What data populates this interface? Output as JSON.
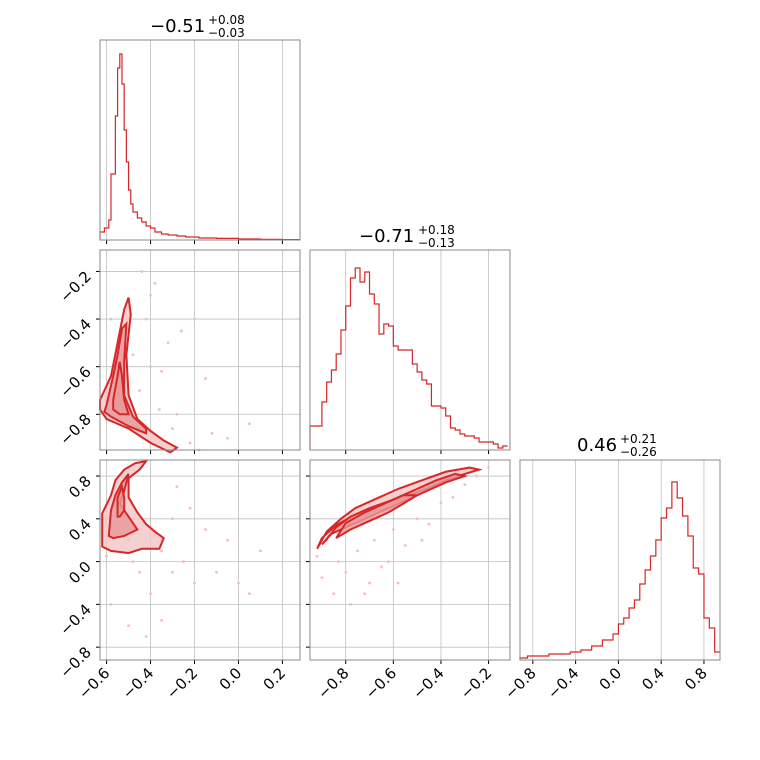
{
  "colors": {
    "line": "#d62728",
    "fill_light": "#f2c4c4",
    "fill_mid": "#e9999a",
    "scatter": "#f4bcbc",
    "grid": "#c0c0c0",
    "frame": "#888888"
  },
  "titles": {
    "p0": {
      "main": "−0.51",
      "sup": "+0.08",
      "sub": "−0.03"
    },
    "p1": {
      "main": "−0.71",
      "sup": "+0.18",
      "sub": "−0.13"
    },
    "p2": {
      "main": "0.46",
      "sup": "+0.21",
      "sub": "−0.26"
    }
  },
  "ticks": {
    "x0": [
      {
        "v": -0.6,
        "label": "−0.6"
      },
      {
        "v": -0.4,
        "label": "−0.4"
      },
      {
        "v": -0.2,
        "label": "−0.2"
      },
      {
        "v": 0.0,
        "label": "0.0"
      },
      {
        "v": 0.2,
        "label": "0.2"
      }
    ],
    "x1": [
      {
        "v": -0.8,
        "label": "−0.8"
      },
      {
        "v": -0.6,
        "label": "−0.6"
      },
      {
        "v": -0.4,
        "label": "−0.4"
      },
      {
        "v": -0.2,
        "label": "−0.2"
      }
    ],
    "x2": [
      {
        "v": -0.8,
        "label": "−0.8"
      },
      {
        "v": -0.4,
        "label": "−0.4"
      },
      {
        "v": 0.0,
        "label": "0.0"
      },
      {
        "v": 0.4,
        "label": "0.4"
      },
      {
        "v": 0.8,
        "label": "0.8"
      }
    ],
    "y1": [
      {
        "v": -0.2,
        "label": "−0.2"
      },
      {
        "v": -0.4,
        "label": "−0.4"
      },
      {
        "v": -0.6,
        "label": "−0.6"
      },
      {
        "v": -0.8,
        "label": "−0.8"
      }
    ],
    "y2": [
      {
        "v": 0.8,
        "label": "0.8"
      },
      {
        "v": 0.4,
        "label": "0.4"
      },
      {
        "v": 0.0,
        "label": "0.0"
      },
      {
        "v": -0.4,
        "label": "−0.4"
      },
      {
        "v": -0.8,
        "label": "−0.8"
      }
    ]
  },
  "chart_data": {
    "type": "corner",
    "grid": true,
    "ranges": {
      "p0": [
        -0.63,
        0.28
      ],
      "p1": [
        -0.95,
        -0.11
      ],
      "p2": [
        -0.92,
        0.95
      ]
    },
    "hist_p0": {
      "x": [
        -0.63,
        -0.61,
        -0.59,
        -0.58,
        -0.56,
        -0.55,
        -0.54,
        -0.53,
        -0.52,
        -0.51,
        -0.5,
        -0.49,
        -0.48,
        -0.46,
        -0.44,
        -0.42,
        -0.4,
        -0.38,
        -0.35,
        -0.32,
        -0.28,
        -0.24,
        -0.18,
        -0.1,
        0.0,
        0.1,
        0.2,
        0.28
      ],
      "y": [
        0.04,
        0.06,
        0.1,
        0.33,
        0.62,
        0.86,
        0.93,
        0.78,
        0.55,
        0.39,
        0.25,
        0.18,
        0.14,
        0.11,
        0.09,
        0.07,
        0.06,
        0.04,
        0.03,
        0.025,
        0.02,
        0.015,
        0.01,
        0.008,
        0.005,
        0.003,
        0.002,
        0.0
      ]
    },
    "hist_p1": {
      "x": [
        -0.95,
        -0.92,
        -0.9,
        -0.88,
        -0.86,
        -0.84,
        -0.82,
        -0.8,
        -0.78,
        -0.76,
        -0.74,
        -0.72,
        -0.7,
        -0.68,
        -0.66,
        -0.64,
        -0.62,
        -0.6,
        -0.58,
        -0.56,
        -0.54,
        -0.52,
        -0.5,
        -0.48,
        -0.46,
        -0.44,
        -0.42,
        -0.4,
        -0.38,
        -0.36,
        -0.34,
        -0.32,
        -0.3,
        -0.28,
        -0.26,
        -0.24,
        -0.22,
        -0.2,
        -0.18,
        -0.16,
        -0.14,
        -0.12
      ],
      "y": [
        0.12,
        0.12,
        0.24,
        0.34,
        0.4,
        0.48,
        0.6,
        0.72,
        0.86,
        0.91,
        0.84,
        0.89,
        0.78,
        0.73,
        0.58,
        0.63,
        0.62,
        0.52,
        0.5,
        0.5,
        0.5,
        0.43,
        0.39,
        0.35,
        0.33,
        0.22,
        0.22,
        0.21,
        0.17,
        0.11,
        0.1,
        0.08,
        0.07,
        0.07,
        0.06,
        0.04,
        0.04,
        0.04,
        0.03,
        0.01,
        0.02,
        0.0
      ]
    },
    "hist_p2": {
      "x": [
        -0.92,
        -0.85,
        -0.75,
        -0.65,
        -0.55,
        -0.45,
        -0.35,
        -0.25,
        -0.15,
        -0.05,
        0.0,
        0.05,
        0.1,
        0.15,
        0.2,
        0.25,
        0.3,
        0.35,
        0.4,
        0.45,
        0.5,
        0.55,
        0.6,
        0.65,
        0.7,
        0.75,
        0.8,
        0.85,
        0.9,
        0.95
      ],
      "y": [
        0.01,
        0.02,
        0.02,
        0.03,
        0.03,
        0.04,
        0.05,
        0.07,
        0.1,
        0.13,
        0.18,
        0.21,
        0.26,
        0.3,
        0.38,
        0.45,
        0.52,
        0.6,
        0.71,
        0.76,
        0.89,
        0.81,
        0.72,
        0.62,
        0.46,
        0.43,
        0.21,
        0.16,
        0.04,
        0.0
      ]
    },
    "scatter_p0_p1": [
      [
        -0.56,
        -0.75
      ],
      [
        -0.52,
        -0.62
      ],
      [
        -0.48,
        -0.55
      ],
      [
        -0.45,
        -0.7
      ],
      [
        -0.42,
        -0.4
      ],
      [
        -0.4,
        -0.3
      ],
      [
        -0.38,
        -0.25
      ],
      [
        -0.35,
        -0.62
      ],
      [
        -0.32,
        -0.5
      ],
      [
        -0.28,
        -0.8
      ],
      [
        -0.26,
        -0.45
      ],
      [
        -0.22,
        -0.92
      ],
      [
        -0.18,
        -0.95
      ],
      [
        -0.12,
        -0.88
      ],
      [
        -0.05,
        -0.9
      ],
      [
        0.05,
        -0.84
      ],
      [
        -0.44,
        -0.2
      ],
      [
        -0.58,
        -0.4
      ],
      [
        -0.5,
        -0.35
      ],
      [
        -0.36,
        -0.78
      ],
      [
        -0.3,
        -0.86
      ],
      [
        -0.15,
        -0.65
      ],
      [
        -0.4,
        -0.6
      ],
      [
        -0.46,
        -0.85
      ],
      [
        -0.2,
        -0.4
      ]
    ],
    "contour_p0_p1": [
      [
        [
          -0.63,
          -0.74
        ],
        [
          -0.58,
          -0.64
        ],
        [
          -0.55,
          -0.5
        ],
        [
          -0.52,
          -0.36
        ],
        [
          -0.5,
          -0.31
        ],
        [
          -0.49,
          -0.38
        ],
        [
          -0.51,
          -0.55
        ],
        [
          -0.5,
          -0.72
        ],
        [
          -0.46,
          -0.82
        ],
        [
          -0.4,
          -0.87
        ],
        [
          -0.34,
          -0.91
        ],
        [
          -0.28,
          -0.94
        ],
        [
          -0.31,
          -0.96
        ],
        [
          -0.4,
          -0.92
        ],
        [
          -0.5,
          -0.86
        ],
        [
          -0.6,
          -0.82
        ],
        [
          -0.63,
          -0.78
        ]
      ],
      [
        [
          -0.6,
          -0.76
        ],
        [
          -0.57,
          -0.64
        ],
        [
          -0.55,
          -0.55
        ],
        [
          -0.53,
          -0.44
        ],
        [
          -0.51,
          -0.42
        ],
        [
          -0.52,
          -0.58
        ],
        [
          -0.52,
          -0.72
        ],
        [
          -0.48,
          -0.81
        ],
        [
          -0.42,
          -0.86
        ],
        [
          -0.42,
          -0.88
        ],
        [
          -0.5,
          -0.85
        ],
        [
          -0.58,
          -0.81
        ],
        [
          -0.61,
          -0.79
        ]
      ],
      [
        [
          -0.57,
          -0.74
        ],
        [
          -0.55,
          -0.64
        ],
        [
          -0.54,
          -0.58
        ],
        [
          -0.53,
          -0.64
        ],
        [
          -0.52,
          -0.74
        ],
        [
          -0.5,
          -0.8
        ],
        [
          -0.54,
          -0.8
        ],
        [
          -0.57,
          -0.78
        ]
      ]
    ],
    "scatter_p0_p2": [
      [
        -0.55,
        0.6
      ],
      [
        -0.5,
        0.2
      ],
      [
        -0.45,
        -0.1
      ],
      [
        -0.4,
        -0.3
      ],
      [
        -0.35,
        0.1
      ],
      [
        -0.3,
        0.4
      ],
      [
        -0.25,
        0.0
      ],
      [
        -0.2,
        -0.2
      ],
      [
        -0.15,
        0.3
      ],
      [
        -0.1,
        -0.1
      ],
      [
        -0.05,
        0.2
      ],
      [
        0.05,
        -0.3
      ],
      [
        0.1,
        0.1
      ],
      [
        -0.58,
        -0.4
      ],
      [
        -0.5,
        -0.6
      ],
      [
        -0.42,
        -0.7
      ],
      [
        -0.35,
        -0.55
      ],
      [
        -0.28,
        0.7
      ],
      [
        -0.6,
        0.05
      ],
      [
        -0.3,
        -0.1
      ],
      [
        -0.22,
        0.5
      ],
      [
        0.0,
        -0.2
      ],
      [
        -0.48,
        0.0
      ],
      [
        -0.38,
        0.25
      ]
    ],
    "contour_p0_p2": [
      [
        [
          -0.62,
          0.18
        ],
        [
          -0.62,
          0.45
        ],
        [
          -0.58,
          0.62
        ],
        [
          -0.56,
          0.76
        ],
        [
          -0.52,
          0.86
        ],
        [
          -0.47,
          0.92
        ],
        [
          -0.42,
          0.94
        ],
        [
          -0.45,
          0.86
        ],
        [
          -0.5,
          0.78
        ],
        [
          -0.5,
          0.6
        ],
        [
          -0.46,
          0.46
        ],
        [
          -0.42,
          0.35
        ],
        [
          -0.38,
          0.28
        ],
        [
          -0.34,
          0.22
        ],
        [
          -0.36,
          0.12
        ],
        [
          -0.44,
          0.12
        ],
        [
          -0.5,
          0.08
        ],
        [
          -0.58,
          0.1
        ],
        [
          -0.62,
          0.14
        ]
      ],
      [
        [
          -0.59,
          0.24
        ],
        [
          -0.58,
          0.48
        ],
        [
          -0.56,
          0.62
        ],
        [
          -0.53,
          0.74
        ],
        [
          -0.5,
          0.82
        ],
        [
          -0.52,
          0.66
        ],
        [
          -0.54,
          0.54
        ],
        [
          -0.5,
          0.42
        ],
        [
          -0.46,
          0.3
        ],
        [
          -0.52,
          0.24
        ],
        [
          -0.57,
          0.22
        ]
      ],
      [
        [
          -0.55,
          0.42
        ],
        [
          -0.55,
          0.6
        ],
        [
          -0.53,
          0.7
        ],
        [
          -0.52,
          0.6
        ],
        [
          -0.52,
          0.48
        ],
        [
          -0.54,
          0.42
        ]
      ]
    ],
    "scatter_p1_p2": [
      [
        -0.92,
        0.05
      ],
      [
        -0.9,
        -0.15
      ],
      [
        -0.85,
        -0.3
      ],
      [
        -0.8,
        -0.1
      ],
      [
        -0.78,
        -0.4
      ],
      [
        -0.75,
        0.1
      ],
      [
        -0.7,
        -0.2
      ],
      [
        -0.68,
        0.2
      ],
      [
        -0.65,
        -0.05
      ],
      [
        -0.6,
        0.3
      ],
      [
        -0.55,
        0.15
      ],
      [
        -0.5,
        0.4
      ],
      [
        -0.45,
        0.35
      ],
      [
        -0.4,
        0.55
      ],
      [
        -0.35,
        0.6
      ],
      [
        -0.3,
        0.72
      ],
      [
        -0.25,
        0.8
      ],
      [
        -0.2,
        0.88
      ],
      [
        -0.88,
        0.2
      ],
      [
        -0.83,
        0.0
      ],
      [
        -0.72,
        -0.3
      ],
      [
        -0.62,
        0.0
      ],
      [
        -0.58,
        -0.2
      ],
      [
        -0.48,
        0.2
      ]
    ],
    "contour_p1_p2": [
      [
        [
          -0.92,
          0.12
        ],
        [
          -0.9,
          0.22
        ],
        [
          -0.84,
          0.34
        ],
        [
          -0.76,
          0.44
        ],
        [
          -0.66,
          0.52
        ],
        [
          -0.56,
          0.6
        ],
        [
          -0.46,
          0.68
        ],
        [
          -0.38,
          0.76
        ],
        [
          -0.3,
          0.82
        ],
        [
          -0.24,
          0.86
        ],
        [
          -0.28,
          0.88
        ],
        [
          -0.38,
          0.84
        ],
        [
          -0.48,
          0.76
        ],
        [
          -0.58,
          0.68
        ],
        [
          -0.68,
          0.58
        ],
        [
          -0.76,
          0.5
        ],
        [
          -0.82,
          0.4
        ],
        [
          -0.88,
          0.28
        ]
      ],
      [
        [
          -0.9,
          0.16
        ],
        [
          -0.86,
          0.26
        ],
        [
          -0.78,
          0.34
        ],
        [
          -0.7,
          0.42
        ],
        [
          -0.62,
          0.5
        ],
        [
          -0.54,
          0.58
        ],
        [
          -0.46,
          0.66
        ],
        [
          -0.38,
          0.74
        ],
        [
          -0.3,
          0.8
        ],
        [
          -0.34,
          0.82
        ],
        [
          -0.42,
          0.76
        ],
        [
          -0.5,
          0.68
        ],
        [
          -0.6,
          0.58
        ],
        [
          -0.7,
          0.5
        ],
        [
          -0.78,
          0.42
        ],
        [
          -0.84,
          0.32
        ]
      ],
      [
        [
          -0.84,
          0.22
        ],
        [
          -0.78,
          0.3
        ],
        [
          -0.7,
          0.38
        ],
        [
          -0.62,
          0.46
        ],
        [
          -0.56,
          0.54
        ],
        [
          -0.5,
          0.62
        ],
        [
          -0.56,
          0.62
        ],
        [
          -0.64,
          0.54
        ],
        [
          -0.72,
          0.46
        ],
        [
          -0.8,
          0.36
        ]
      ]
    ]
  }
}
